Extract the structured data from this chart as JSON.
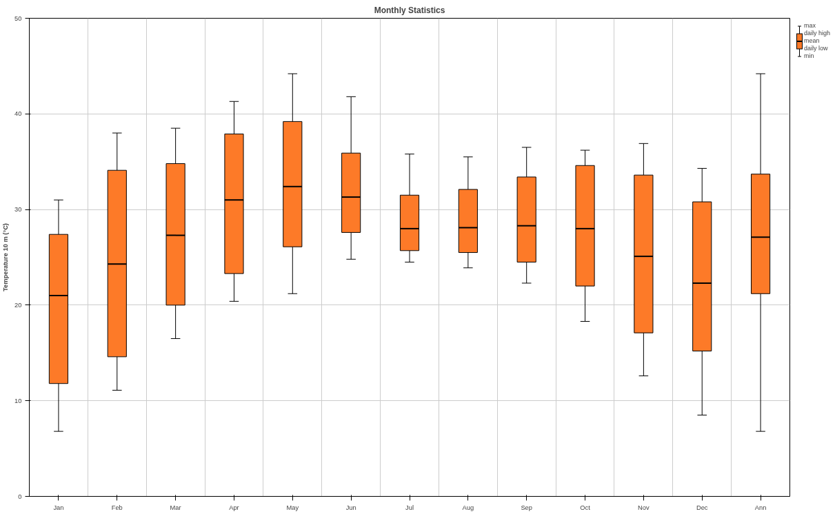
{
  "chart_data": {
    "type": "box",
    "title": "Monthly Statistics",
    "ylabel": "Temperature 10 m (°C)",
    "categories": [
      "Jan",
      "Feb",
      "Mar",
      "Apr",
      "May",
      "Jun",
      "Jul",
      "Aug",
      "Sep",
      "Oct",
      "Nov",
      "Dec",
      "Ann"
    ],
    "color": "#fd7a28",
    "boxes": [
      {
        "low": 6.8,
        "q1": 11.8,
        "median": 21.0,
        "q3": 27.4,
        "high": 31.0
      },
      {
        "low": 11.1,
        "q1": 14.6,
        "median": 24.3,
        "q3": 34.1,
        "high": 38.0
      },
      {
        "low": 16.5,
        "q1": 20.0,
        "median": 27.3,
        "q3": 34.8,
        "high": 38.5
      },
      {
        "low": 20.4,
        "q1": 23.3,
        "median": 31.0,
        "q3": 37.9,
        "high": 41.3
      },
      {
        "low": 21.2,
        "q1": 26.1,
        "median": 32.4,
        "q3": 39.2,
        "high": 44.2
      },
      {
        "low": 24.8,
        "q1": 27.6,
        "median": 31.3,
        "q3": 35.9,
        "high": 41.8
      },
      {
        "low": 24.5,
        "q1": 25.7,
        "median": 28.0,
        "q3": 31.5,
        "high": 35.8
      },
      {
        "low": 23.9,
        "q1": 25.5,
        "median": 28.1,
        "q3": 32.1,
        "high": 35.5
      },
      {
        "low": 22.3,
        "q1": 24.5,
        "median": 28.3,
        "q3": 33.4,
        "high": 36.5
      },
      {
        "low": 18.3,
        "q1": 22.0,
        "median": 28.0,
        "q3": 34.6,
        "high": 36.2
      },
      {
        "low": 12.6,
        "q1": 17.1,
        "median": 25.1,
        "q3": 33.6,
        "high": 36.9
      },
      {
        "low": 8.5,
        "q1": 15.2,
        "median": 22.3,
        "q3": 30.8,
        "high": 34.3
      },
      {
        "low": 6.8,
        "q1": 21.2,
        "median": 27.1,
        "q3": 33.7,
        "high": 44.2
      }
    ],
    "ylim": [
      0,
      50
    ],
    "yticks": [
      0,
      10,
      20,
      30,
      40,
      50
    ],
    "grid": true,
    "annotations": [
      "max",
      "daily high",
      "mean",
      "daily low",
      "min"
    ]
  }
}
